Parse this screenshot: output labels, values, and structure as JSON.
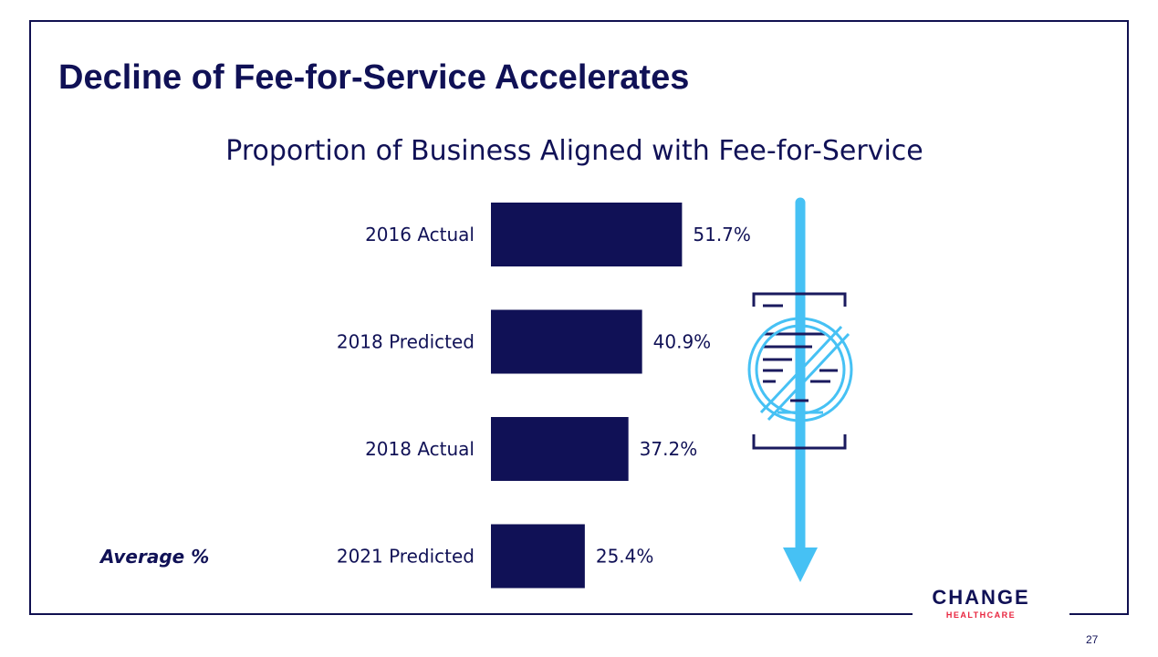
{
  "slide": {
    "title": "Decline of Fee-for-Service Accelerates",
    "page_number": "27",
    "average_label": "Average %"
  },
  "logo": {
    "name": "CHANGE HEALTHCARE",
    "line1": "CHANGE",
    "line2": "HEALTHCARE",
    "colors": {
      "navy": "#101156",
      "red": "#E8233D"
    }
  },
  "decor": {
    "arrow_color": "#46C1F4",
    "icon": "no-fee-document-icon"
  },
  "chart_data": {
    "type": "bar",
    "orientation": "horizontal",
    "title": "Proportion of Business Aligned with Fee-for-Service",
    "categories": [
      "2016 Actual",
      "2018 Predicted",
      "2018 Actual",
      "2021 Predicted"
    ],
    "values": [
      51.7,
      40.9,
      37.2,
      25.4
    ],
    "value_labels": [
      "51.7%",
      "40.9%",
      "37.2%",
      "25.4%"
    ],
    "unit": "%",
    "bar_color": "#101156",
    "xlim": [
      0,
      100
    ],
    "grid": false,
    "legend": "none"
  }
}
